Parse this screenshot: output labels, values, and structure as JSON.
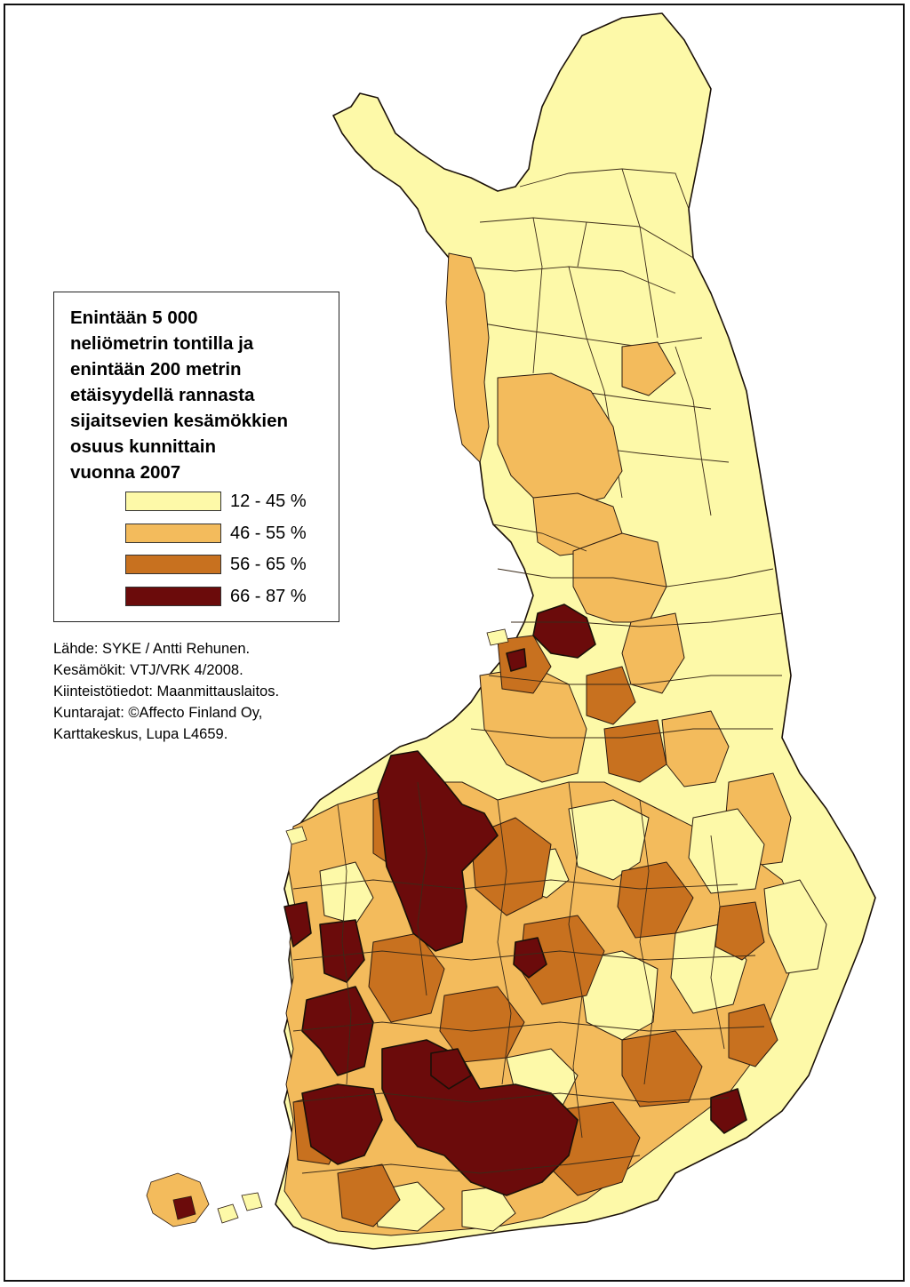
{
  "legend": {
    "title_lines": [
      "Enintään 5 000",
      "neliömetrin tontilla ja",
      "enintään 200 metrin",
      "etäisyydellä rannasta",
      "sijaitsevien kesämökkien",
      "osuus kunnittain",
      "vuonna 2007"
    ],
    "classes": [
      {
        "label": "12 - 45 %",
        "color": "#fdf9a8"
      },
      {
        "label": "46 - 55 %",
        "color": "#f3bb5c"
      },
      {
        "label": "56 - 65 %",
        "color": "#c8711f"
      },
      {
        "label": "66 - 87 %",
        "color": "#6b0b0b"
      }
    ]
  },
  "source_lines": [
    "Lähde: SYKE / Antti Rehunen.",
    "Kesämökit: VTJ/VRK 4/2008.",
    "Kiinteistötiedot: Maanmittauslaitos.",
    "Kuntarajat: ©Affecto Finland Oy,",
    "Karttakeskus, Lupa L4659."
  ]
}
